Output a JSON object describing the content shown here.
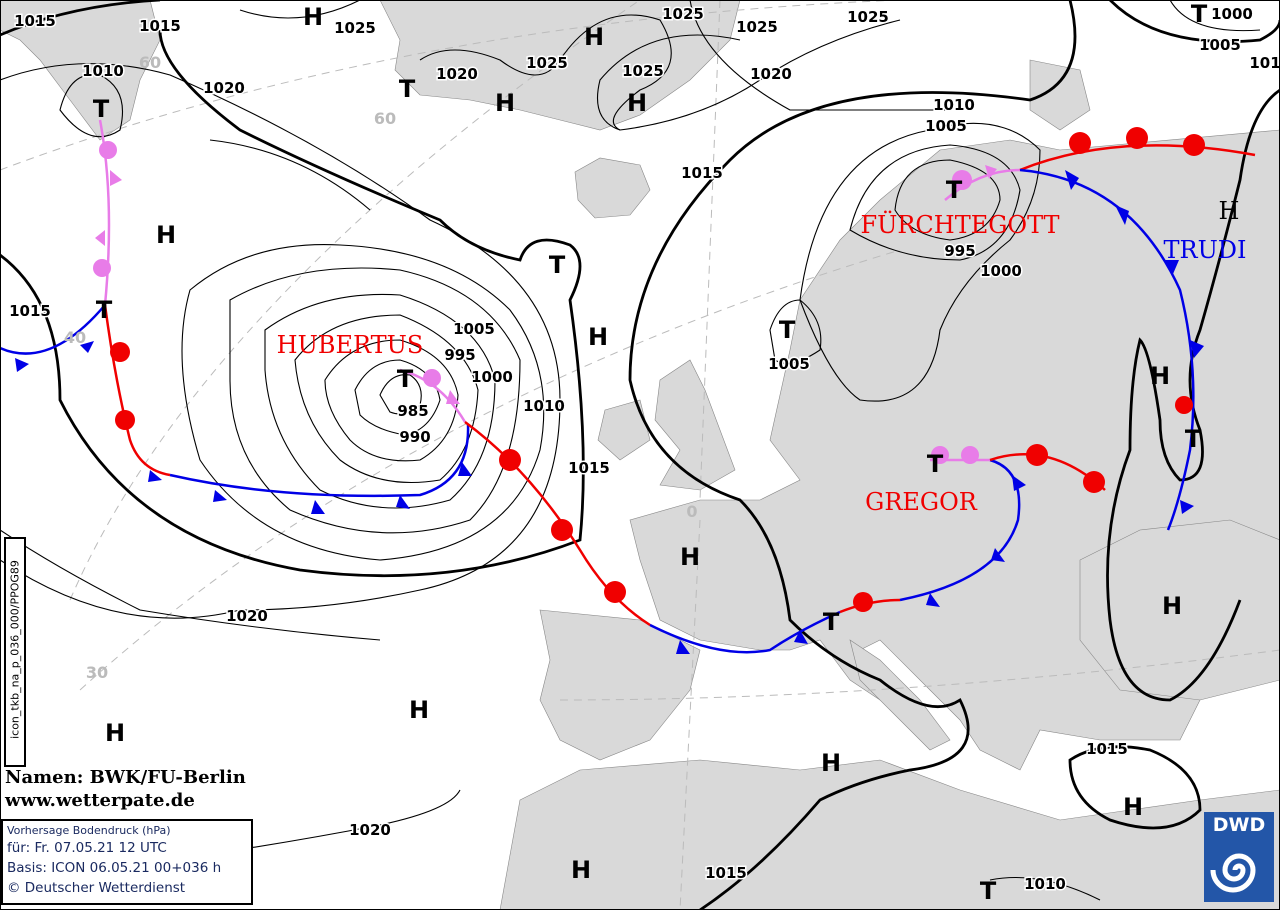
{
  "map": {
    "isobar_labels": [
      "1015",
      "1015",
      "1025",
      "1025",
      "1025",
      "1025",
      "1000",
      "1005",
      "101",
      "1010",
      "1020",
      "1020",
      "1025",
      "1025",
      "1020",
      "1010",
      "1005",
      "1015",
      "995",
      "1000",
      "1015",
      "1005",
      "995",
      "1000",
      "1010",
      "985",
      "990",
      "1015",
      "1005",
      "1020",
      "1020",
      "1015",
      "1015",
      "1010"
    ],
    "high_symbol": "H",
    "low_symbol": "T",
    "grid_labels": [
      "60",
      "60",
      "40",
      "0",
      "30"
    ],
    "system_names": {
      "hubertus": "HUBERTUS",
      "fuerchtegott": "FÜRCHTEGOTT",
      "gregor": "GREGOR",
      "trudi": "TRUDI",
      "trudi_h": "H"
    },
    "colors": {
      "cold_front": "#0000e6",
      "warm_front": "#f00000",
      "occlusion": "#e87ce8",
      "land": "#d9d9d9",
      "low_names": "#f00000",
      "high_names": "#0000e6"
    }
  },
  "product_code": "icon_tkb_na_p_036_000/PPOG89",
  "credits": {
    "names": "Namen: BWK/FU-Berlin",
    "url": "www.wetterpate.de"
  },
  "info": {
    "title": "Vorhersage Bodendruck (hPa)",
    "valid": "für:  Fr. 07.05.21  12 UTC",
    "basis": "Basis: ICON  06.05.21 00+036 h",
    "copyright": "© Deutscher Wetterdienst"
  },
  "logo": {
    "text": "DWD",
    "icon": "dwd-spiral-logo"
  }
}
